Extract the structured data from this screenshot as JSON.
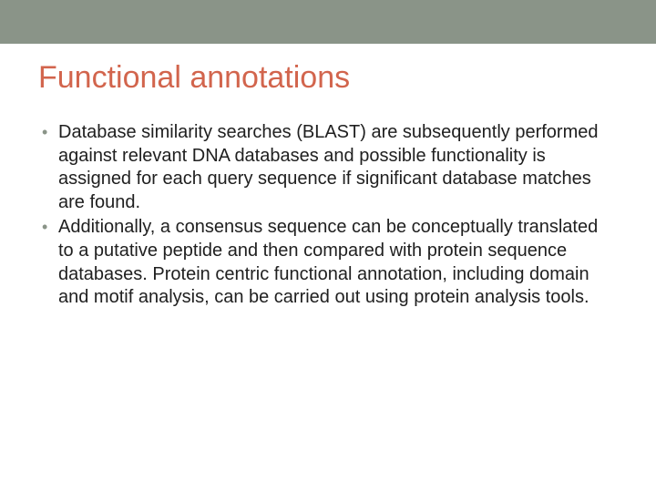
{
  "slide": {
    "top_bar_color": "#8a9488",
    "background_color": "#ffffff",
    "title": "Functional annotations",
    "title_color": "#d2654d",
    "title_fontsize": 34,
    "body_fontsize": 20,
    "body_color": "#202020",
    "bullet_color": "#8a9488",
    "bullets": [
      "Database similarity searches (BLAST) are subsequently performed against relevant DNA databases and possible functionality is assigned for each query sequence if significant database matches are found.",
      "Additionally, a consensus sequence can be conceptually translated to a putative peptide and then compared with protein sequence databases. Protein centric functional annotation, including domain and motif analysis, can be carried out using protein analysis tools."
    ]
  }
}
